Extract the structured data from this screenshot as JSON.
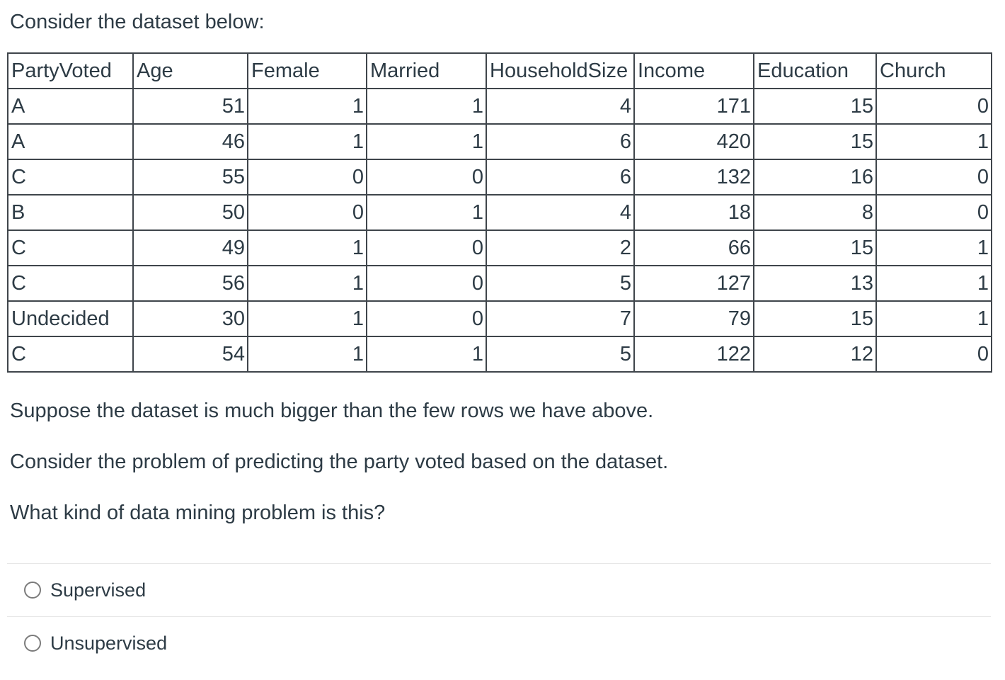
{
  "page": {
    "intro": "Consider the dataset below:",
    "paragraphs": [
      "Suppose the dataset is much bigger than the few rows we have above.",
      "Consider the problem of predicting the party voted based on the dataset.",
      "What kind of data mining problem is this?"
    ]
  },
  "table": {
    "columns": [
      "PartyVoted",
      "Age",
      "Female",
      "Married",
      "HouseholdSize",
      "Income",
      "Education",
      "Church"
    ],
    "rows": [
      [
        "A",
        51,
        1,
        1,
        4,
        171,
        15,
        0
      ],
      [
        "A",
        46,
        1,
        1,
        6,
        420,
        15,
        1
      ],
      [
        "C",
        55,
        0,
        0,
        6,
        132,
        16,
        0
      ],
      [
        "B",
        50,
        0,
        1,
        4,
        18,
        8,
        0
      ],
      [
        "C",
        49,
        1,
        0,
        2,
        66,
        15,
        1
      ],
      [
        "C",
        56,
        1,
        0,
        5,
        127,
        13,
        1
      ],
      [
        "Undecided",
        30,
        1,
        0,
        7,
        79,
        15,
        1
      ],
      [
        "C",
        54,
        1,
        1,
        5,
        122,
        12,
        0
      ]
    ]
  },
  "options": [
    {
      "label": "Supervised",
      "selected": false
    },
    {
      "label": "Unsupervised",
      "selected": false
    }
  ],
  "colors": {
    "text": "#2d3b45",
    "table_border": "#3f454b",
    "divider": "#e7e7e7",
    "radio_border": "#7b7b7b"
  }
}
